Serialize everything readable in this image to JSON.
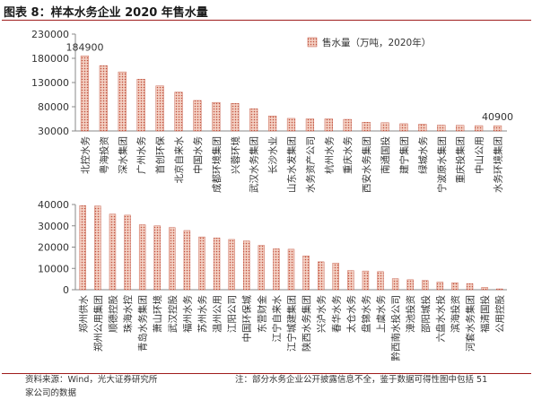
{
  "figure_title": "图表 8：样本水务企业 2020 年售水量",
  "source_note": "资料来源：Wind，光大证券研究所",
  "source_note2": "家公司的数据",
  "footnote": "注：部分水务企业公开披露信息不全，鉴于数据可得性图中包括 51",
  "colors": {
    "bar_fill": "#e8b9a8",
    "bar_dot": "#c0503c",
    "accent": "#a01c1c",
    "axis": "#888888"
  },
  "chart_data": [
    {
      "type": "bar",
      "title": "",
      "legend": "售水量（万吨，2020年）",
      "legend_position": "top-right",
      "grid": false,
      "ylim": [
        30000,
        230000
      ],
      "yticks": [
        30000,
        80000,
        130000,
        180000,
        230000
      ],
      "categories": [
        "北控水务",
        "粤海投资",
        "深水集团",
        "广州水务",
        "首创环保",
        "北京自来水",
        "中国水务",
        "成都环境集团",
        "兴蓉环境",
        "武汉水务集团",
        "长沙水业",
        "山东水发集团",
        "水务资产公司",
        "杭州水务",
        "重庆水务",
        "西安水务集团",
        "南通国投",
        "建宁集团",
        "绿城水务",
        "宁波原水集团",
        "重庆投集团",
        "中山公用",
        "水务环境集团"
      ],
      "values": [
        184900,
        165000,
        152000,
        137000,
        123000,
        110000,
        93000,
        89000,
        87000,
        76000,
        61000,
        56000,
        55000,
        55000,
        54000,
        48000,
        47000,
        45000,
        44000,
        42000,
        41500,
        41000,
        40900
      ],
      "data_labels": [
        {
          "index": 0,
          "text": "184900"
        },
        {
          "index": 22,
          "text": "40900"
        }
      ]
    },
    {
      "type": "bar",
      "ylim": [
        0,
        40000
      ],
      "yticks": [
        0,
        10000,
        20000,
        30000,
        40000
      ],
      "grid": false,
      "categories": [
        "郑州供水",
        "郑州公用集团",
        "顺德控股",
        "珠海水控",
        "青岛水务集团",
        "萧山环境",
        "武汉控股",
        "福州水务",
        "苏州水务",
        "温州公用",
        "江阳公司",
        "中国环保城",
        "东营财金",
        "江宁自来水",
        "江宁城建集团",
        "陕西水务集团",
        "兴泸水务",
        "春华水务",
        "太仓水务",
        "盘锦水务",
        "上虞水务",
        "黔西南水投公司",
        "漳池投资",
        "邵阳城投",
        "六盘水水投",
        "滨海投资",
        "河套水务集团",
        "福清国投",
        "公用控股"
      ],
      "values": [
        39500,
        39300,
        35500,
        35000,
        30500,
        30000,
        29200,
        27800,
        24800,
        24300,
        23600,
        22900,
        20800,
        19200,
        19000,
        15900,
        13100,
        12500,
        9000,
        8800,
        8500,
        5200,
        4700,
        4300,
        3600,
        3300,
        2900,
        1100,
        400
      ]
    }
  ]
}
